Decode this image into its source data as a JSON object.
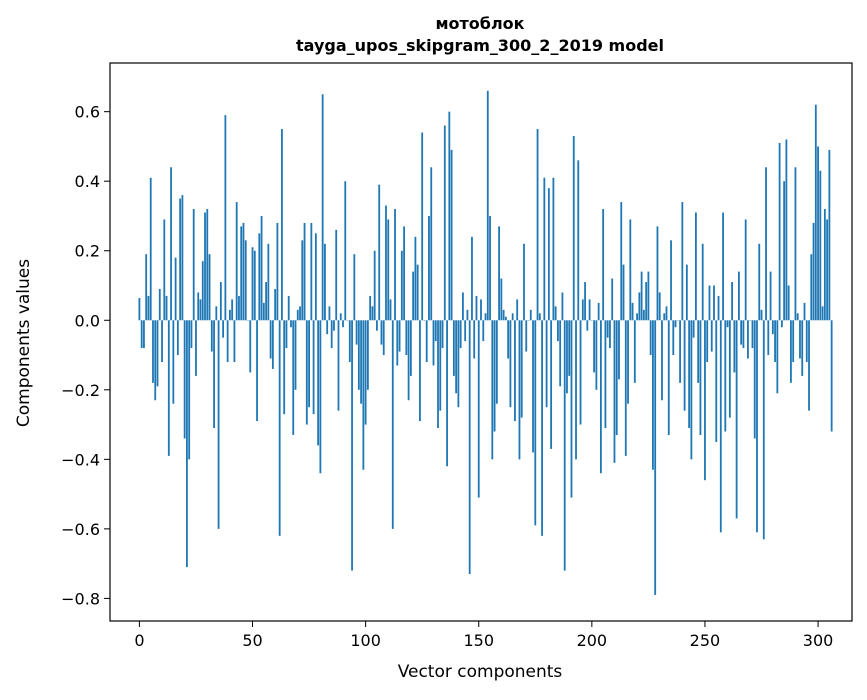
{
  "chart_data": {
    "type": "bar",
    "title_line1": "мотоблок",
    "title_line2": "tayga_upos_skipgram_300_2_2019 model",
    "xlabel": "Vector components",
    "ylabel": "Components values",
    "xlim": [
      -13,
      315
    ],
    "ylim": [
      -0.865,
      0.74
    ],
    "xticks": [
      0,
      50,
      100,
      150,
      200,
      250,
      300
    ],
    "xtick_labels": [
      "0",
      "50",
      "100",
      "150",
      "200",
      "250",
      "300"
    ],
    "yticks": [
      -0.8,
      -0.6,
      -0.4,
      -0.2,
      0.0,
      0.2,
      0.4,
      0.6
    ],
    "ytick_labels": [
      "−0.8",
      "−0.6",
      "−0.4",
      "−0.2",
      "0.0",
      "0.2",
      "0.4",
      "0.6"
    ],
    "bar_color": "#1f77b4",
    "grid": false,
    "values": [
      0.064,
      -0.08,
      -0.08,
      0.19,
      0.07,
      0.41,
      -0.18,
      -0.23,
      -0.19,
      0.09,
      -0.12,
      0.29,
      0.07,
      -0.39,
      0.44,
      -0.24,
      0.18,
      -0.1,
      0.35,
      0.36,
      -0.34,
      -0.71,
      -0.4,
      -0.08,
      0.32,
      -0.16,
      0.08,
      0.06,
      0.17,
      0.31,
      0.32,
      0.19,
      -0.09,
      -0.31,
      0.04,
      -0.6,
      0.11,
      -0.05,
      0.59,
      -0.12,
      0.03,
      0.06,
      -0.12,
      0.34,
      0.07,
      0.27,
      0.28,
      0.23,
      0.0,
      -0.15,
      0.21,
      0.2,
      -0.29,
      0.25,
      0.3,
      0.05,
      0.11,
      0.22,
      -0.11,
      -0.14,
      0.09,
      0.28,
      -0.62,
      0.55,
      -0.27,
      -0.08,
      0.07,
      -0.02,
      -0.33,
      -0.2,
      0.03,
      0.04,
      0.23,
      0.28,
      -0.3,
      -0.25,
      0.28,
      -0.27,
      0.25,
      -0.36,
      -0.44,
      0.65,
      0.22,
      -0.04,
      0.04,
      -0.08,
      -0.03,
      0.26,
      -0.26,
      0.02,
      -0.02,
      0.4,
      0.0,
      -0.12,
      -0.72,
      0.19,
      -0.07,
      -0.2,
      -0.24,
      -0.43,
      -0.3,
      -0.2,
      0.07,
      0.04,
      0.2,
      -0.03,
      0.39,
      -0.07,
      -0.1,
      0.33,
      0.29,
      0.06,
      -0.6,
      0.32,
      -0.13,
      -0.09,
      0.2,
      0.27,
      -0.1,
      -0.23,
      -0.16,
      0.14,
      0.24,
      0.16,
      -0.29,
      0.54,
      0.0,
      -0.12,
      0.3,
      0.44,
      -0.13,
      -0.06,
      -0.31,
      -0.26,
      -0.08,
      0.56,
      -0.42,
      0.6,
      0.49,
      -0.16,
      -0.21,
      -0.25,
      -0.08,
      0.08,
      -0.06,
      0.03,
      -0.73,
      0.24,
      -0.11,
      0.07,
      -0.51,
      0.06,
      -0.06,
      0.02,
      0.66,
      0.3,
      -0.4,
      -0.32,
      -0.24,
      0.27,
      0.12,
      0.03,
      0.01,
      -0.11,
      -0.25,
      0.02,
      -0.29,
      0.06,
      -0.4,
      -0.28,
      0.22,
      -0.09,
      0.0,
      0.03,
      -0.38,
      -0.59,
      0.55,
      0.02,
      -0.62,
      0.41,
      -0.25,
      0.38,
      -0.37,
      0.41,
      0.04,
      -0.06,
      -0.19,
      0.08,
      -0.72,
      -0.21,
      -0.16,
      -0.51,
      0.53,
      -0.4,
      0.46,
      -0.3,
      0.06,
      0.11,
      -0.03,
      0.06,
      0.0,
      -0.15,
      -0.2,
      0.05,
      -0.44,
      0.32,
      -0.31,
      -0.05,
      -0.08,
      0.12,
      -0.41,
      -0.33,
      -0.17,
      0.34,
      0.16,
      -0.39,
      -0.24,
      0.29,
      0.05,
      -0.18,
      0.02,
      0.08,
      0.14,
      0.03,
      0.11,
      0.14,
      -0.1,
      -0.43,
      -0.79,
      0.27,
      0.08,
      -0.23,
      0.02,
      0.04,
      -0.33,
      0.23,
      -0.1,
      -0.02,
      0.0,
      -0.18,
      0.34,
      -0.26,
      0.16,
      -0.31,
      -0.4,
      -0.05,
      0.31,
      -0.18,
      -0.33,
      0.22,
      -0.46,
      -0.12,
      0.1,
      -0.09,
      0.1,
      -0.35,
      0.07,
      -0.61,
      0.31,
      -0.32,
      -0.02,
      -0.28,
      0.11,
      -0.15,
      -0.57,
      0.14,
      -0.07,
      -0.08,
      0.29,
      -0.11,
      0.0,
      -0.08,
      -0.34,
      -0.61,
      0.22,
      0.03,
      -0.63,
      0.44,
      -0.1,
      0.14,
      -0.04,
      -0.12,
      -0.21,
      0.51,
      -0.02,
      0.4,
      0.52,
      0.1,
      -0.18,
      -0.12,
      0.44,
      0.02,
      -0.11,
      -0.16,
      0.05,
      -0.12,
      -0.26,
      0.19,
      0.28,
      0.62,
      0.5,
      0.43,
      0.04,
      0.32,
      0.29,
      0.49,
      -0.32
    ]
  }
}
